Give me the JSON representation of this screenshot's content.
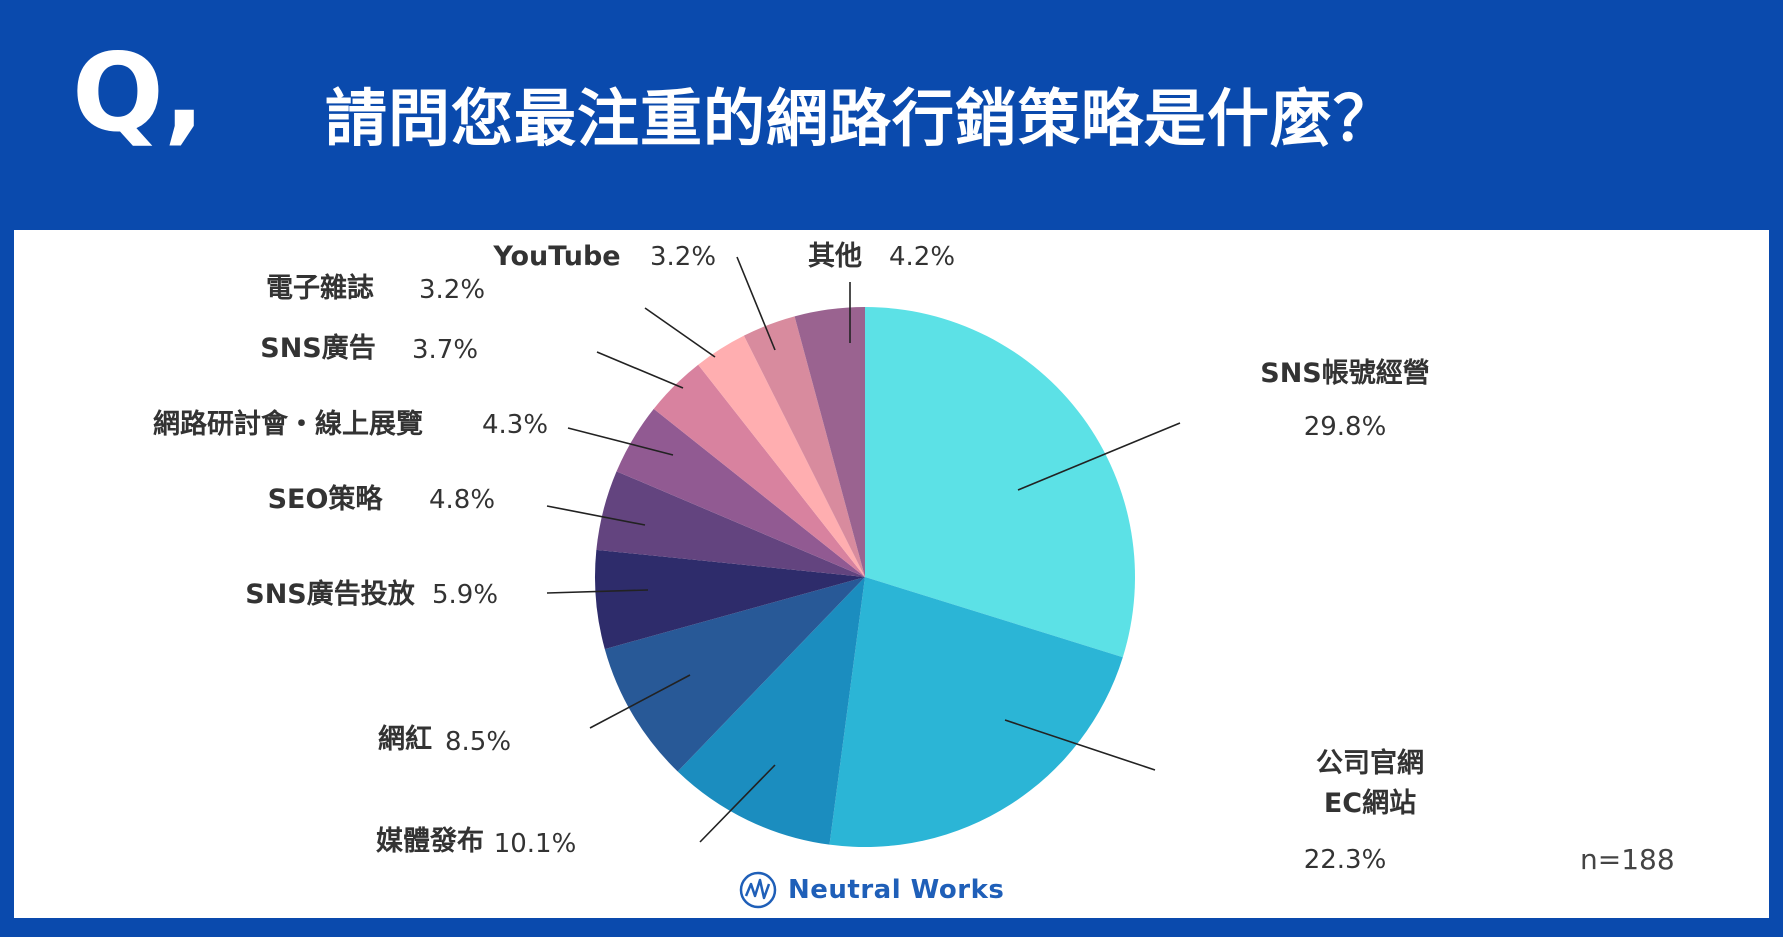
{
  "header": {
    "q_mark": "Q,",
    "title": "請問您最注重的網路行銷策略是什麼？"
  },
  "chart_data": {
    "type": "pie",
    "title": "請問您最注重的網路行銷策略是什麼？",
    "slices": [
      {
        "label": "SNS帳號經營",
        "value": 29.8,
        "pct_text": "29.8%",
        "color": "#5ce1e6"
      },
      {
        "label": "公司官網\nEC網站",
        "value": 22.3,
        "pct_text": "22.3%",
        "color": "#2bb5d6"
      },
      {
        "label": "媒體發布",
        "value": 10.1,
        "pct_text": "10.1%",
        "color": "#1b8dbf"
      },
      {
        "label": "網紅",
        "value": 8.5,
        "pct_text": "8.5%",
        "color": "#285997"
      },
      {
        "label": "SNS廣告投放",
        "value": 5.9,
        "pct_text": "5.9%",
        "color": "#2e2c6b"
      },
      {
        "label": "SEO策略",
        "value": 4.8,
        "pct_text": "4.8%",
        "color": "#63447f"
      },
      {
        "label": "網路研討會・線上展覽",
        "value": 4.3,
        "pct_text": "4.3%",
        "color": "#915a92"
      },
      {
        "label": "SNS廣告",
        "value": 3.7,
        "pct_text": "3.7%",
        "color": "#d8829f"
      },
      {
        "label": "電子雜誌",
        "value": 3.2,
        "pct_text": "3.2%",
        "color": "#ffaeb0"
      },
      {
        "label": "YouTube",
        "value": 3.2,
        "pct_text": "3.2%",
        "color": "#d88b9e"
      },
      {
        "label": "其他",
        "value": 4.2,
        "pct_text": "4.2%",
        "color": "#9a6390"
      }
    ],
    "sample": "n=188"
  },
  "branding": {
    "logo_text": "Neutral Works",
    "logo_icon": "neutral-works-logo-icon",
    "accent": "#0a4aad"
  }
}
